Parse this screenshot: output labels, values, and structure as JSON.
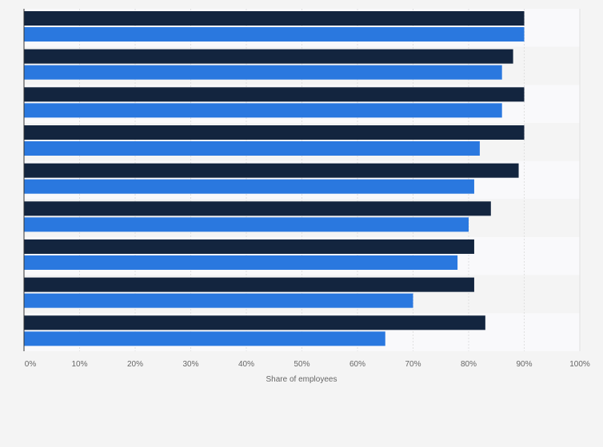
{
  "chart_data": {
    "type": "bar",
    "orientation": "horizontal",
    "categories": [
      "",
      "",
      "",
      "",
      "",
      "",
      "",
      "",
      ""
    ],
    "series": [
      {
        "values": [
          90,
          88,
          90,
          90,
          89,
          84,
          81,
          81,
          83
        ]
      },
      {
        "values": [
          90,
          86,
          86,
          82,
          81,
          80,
          78,
          70,
          65
        ]
      }
    ],
    "title": "",
    "xlabel": "Share of employees",
    "ylabel": "",
    "xlim": [
      0,
      100
    ],
    "x_ticks": [
      0,
      10,
      20,
      30,
      40,
      50,
      60,
      70,
      80,
      90,
      100
    ],
    "x_tick_labels": [
      "0%",
      "10%",
      "20%",
      "30%",
      "40%",
      "50%",
      "60%",
      "70%",
      "80%",
      "90%",
      "100%"
    ],
    "grid": true,
    "legend": "none",
    "colors": {
      "series_1": "#13253f",
      "series_2": "#2a78df",
      "band_light": "#f9f9fb",
      "band_dark": "#f4f4f4",
      "grid": "#e0e0e0",
      "axis": "#333333",
      "tick_text": "#666666"
    }
  }
}
